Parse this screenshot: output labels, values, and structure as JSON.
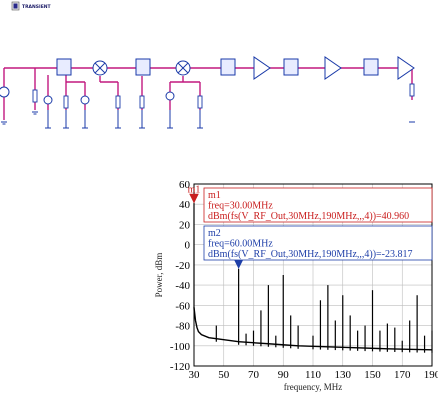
{
  "toolbar": {
    "component_label": "TRANSIENT"
  },
  "colors": {
    "wire": "#c2187f",
    "block": "#1a3aa8",
    "block_fill": "#e8ecff",
    "marker1": "#c91e1e",
    "marker2": "#1f3fa8",
    "trace": "#000000",
    "grid": "#bdbdbd"
  },
  "chart_data": {
    "type": "line",
    "title": "",
    "xlabel": "frequency, MHz",
    "ylabel": "Power, dBm",
    "xlim": [
      30,
      190
    ],
    "ylim": [
      -120,
      60
    ],
    "x_ticks": [
      30,
      50,
      70,
      90,
      110,
      130,
      150,
      170,
      190
    ],
    "y_ticks": [
      60,
      40,
      20,
      0,
      -20,
      -40,
      -60,
      -80,
      -100,
      -120
    ],
    "grid": true,
    "noise_floor": {
      "x": [
        30,
        31,
        32,
        33,
        35,
        40,
        50,
        60,
        80,
        100,
        120,
        140,
        160,
        190
      ],
      "y": [
        -62,
        -75,
        -82,
        -86,
        -89,
        -92,
        -94,
        -96,
        -98,
        -100,
        -101,
        -102,
        -103,
        -104
      ]
    },
    "spurs": [
      {
        "x": 30,
        "y": 40.96
      },
      {
        "x": 45,
        "y": -80
      },
      {
        "x": 60,
        "y": -23.8
      },
      {
        "x": 65,
        "y": -88
      },
      {
        "x": 70,
        "y": -85
      },
      {
        "x": 75,
        "y": -65
      },
      {
        "x": 80,
        "y": -40
      },
      {
        "x": 85,
        "y": -90
      },
      {
        "x": 90,
        "y": -30
      },
      {
        "x": 95,
        "y": -70
      },
      {
        "x": 100,
        "y": -80
      },
      {
        "x": 110,
        "y": -90
      },
      {
        "x": 115,
        "y": -55
      },
      {
        "x": 120,
        "y": -40
      },
      {
        "x": 125,
        "y": -75
      },
      {
        "x": 130,
        "y": -50
      },
      {
        "x": 135,
        "y": -70
      },
      {
        "x": 140,
        "y": -85
      },
      {
        "x": 145,
        "y": -80
      },
      {
        "x": 150,
        "y": -45
      },
      {
        "x": 155,
        "y": -85
      },
      {
        "x": 160,
        "y": -78
      },
      {
        "x": 165,
        "y": -82
      },
      {
        "x": 170,
        "y": -95
      },
      {
        "x": 175,
        "y": -75
      },
      {
        "x": 180,
        "y": -50
      },
      {
        "x": 185,
        "y": -90
      },
      {
        "x": 190,
        "y": -85
      }
    ],
    "markers": [
      {
        "name": "m1",
        "x": 30,
        "y": 40.96,
        "line1": "m1",
        "line2": "freq=30.00MHz",
        "line3": "dBm(fs(V_RF_Out,30MHz,190MHz,,,4))=40.960"
      },
      {
        "name": "m2",
        "x": 60,
        "y": -23.817,
        "line1": "m2",
        "line2": "freq=60.00MHz",
        "line3": "dBm(fs(V_RF_Out,30MHz,190MHz,,,4))=-23.817"
      }
    ]
  }
}
